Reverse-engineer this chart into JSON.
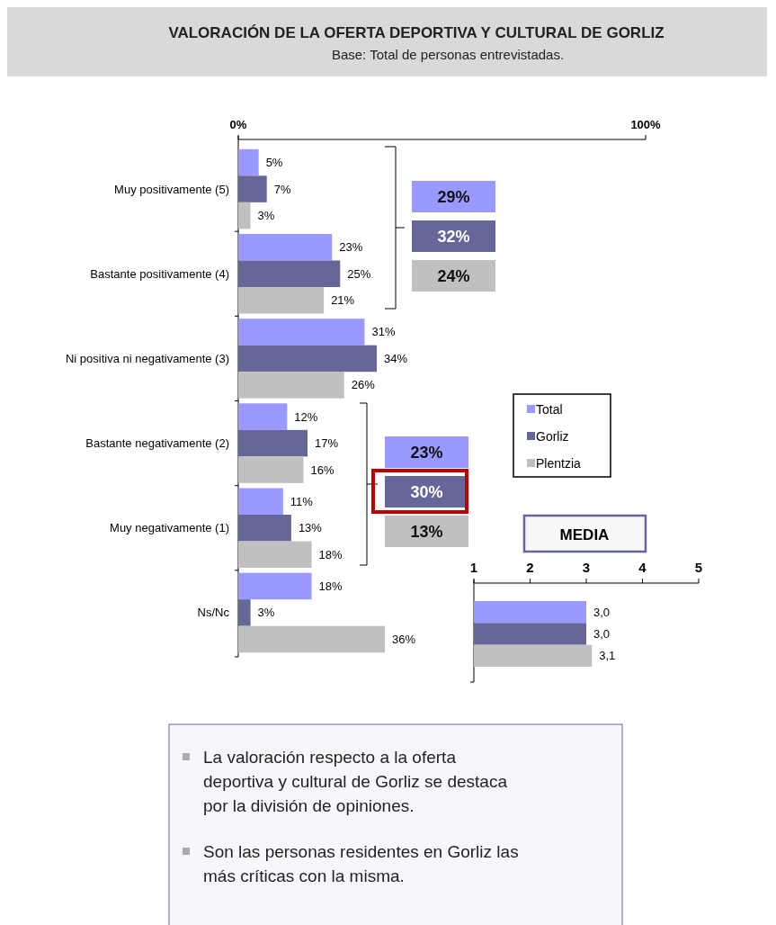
{
  "chart_data": [
    {
      "type": "bar",
      "orientation": "horizontal",
      "title": "VALORACIÓN DE LA OFERTA DEPORTIVA Y CULTURAL DE GORLIZ",
      "subtitle": "Base: Total de personas entrevistadas.",
      "categories": [
        "Muy positivamente (5)",
        "Bastante positivamente (4)",
        "Ni positiva ni negativamente (3)",
        "Bastante negativamente (2)",
        "Muy negativamente (1)",
        "Ns/Nc"
      ],
      "series": [
        {
          "name": "Total",
          "color": "#9999ff",
          "values": [
            5,
            23,
            31,
            12,
            11,
            18
          ],
          "value_labels": [
            "5%",
            "23%",
            "31%",
            "12%",
            "11%",
            "18%"
          ]
        },
        {
          "name": "Gorliz",
          "color": "#666699",
          "values": [
            7,
            25,
            34,
            17,
            13,
            3
          ],
          "value_labels": [
            "7%",
            "25%",
            "34%",
            "17%",
            "13%",
            "3%"
          ]
        },
        {
          "name": "Plentzia",
          "color": "#c0c0c0",
          "values": [
            3,
            21,
            26,
            16,
            18,
            36
          ],
          "value_labels": [
            "3%",
            "21%",
            "26%",
            "16%",
            "18%",
            "36%"
          ]
        }
      ],
      "xlim": [
        0,
        100
      ],
      "xticks": [
        {
          "value": 0,
          "label": "0%"
        },
        {
          "value": 100,
          "label": "100%"
        }
      ],
      "legend": "right",
      "annotations": [
        "29%",
        "32%",
        "24%",
        "23%",
        "30%",
        "13%",
        "La valoración respecto a la oferta deportiva y cultural de Gorliz se destaca por la división de opiniones.",
        "Son las personas residentes en Gorliz las más críticas con la misma."
      ]
    },
    {
      "type": "bar",
      "orientation": "horizontal",
      "title": "MEDIA",
      "categories": [
        null
      ],
      "series": [
        {
          "color": "#9999ff",
          "values": [
            3.0
          ],
          "value_labels": [
            "3,0"
          ]
        },
        {
          "color": "#666699",
          "values": [
            3.0
          ],
          "value_labels": [
            "3,0"
          ]
        },
        {
          "color": "#c0c0c0",
          "values": [
            3.1
          ],
          "value_labels": [
            "3,1"
          ]
        }
      ],
      "xlim": [
        1,
        5
      ],
      "xticks": [
        1,
        2,
        3,
        4,
        5
      ]
    }
  ]
}
